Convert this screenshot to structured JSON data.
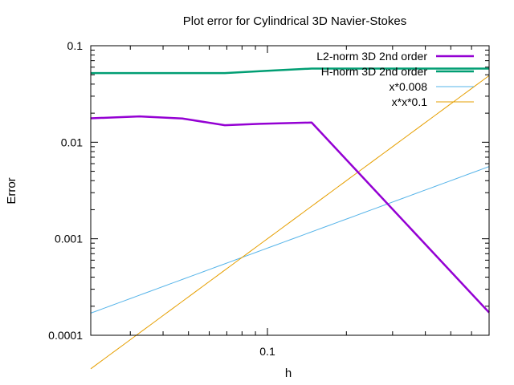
{
  "chart_data": {
    "type": "line",
    "title": "Plot error for Cylindrical 3D Navier-Stokes",
    "xlabel": "h",
    "ylabel": "Error",
    "xscale": "log",
    "yscale": "log",
    "xlim": [
      0.0212,
      0.7
    ],
    "ylim": [
      0.0001,
      0.1
    ],
    "xticks": [
      {
        "value": 0.1,
        "label": "0.1"
      }
    ],
    "yticks": [
      {
        "value": 0.0001,
        "label": "0.0001"
      },
      {
        "value": 0.001,
        "label": "0.001"
      },
      {
        "value": 0.01,
        "label": "0.01"
      },
      {
        "value": 0.1,
        "label": "0.1"
      }
    ],
    "legend_position": "top-right",
    "series": [
      {
        "name": "L2-norm 3D 2nd order",
        "color": "#9400d3",
        "style": "thick",
        "x": [
          0.0212,
          0.0325,
          0.0474,
          0.0688,
          0.0936,
          0.1474,
          0.7
        ],
        "y": [
          0.0177,
          0.0185,
          0.0176,
          0.015,
          0.0155,
          0.016,
          0.000172
        ]
      },
      {
        "name": "H-norm 3D 2nd order",
        "color": "#009e73",
        "style": "thick",
        "x": [
          0.0212,
          0.0688,
          0.1,
          0.1474,
          0.7
        ],
        "y": [
          0.052,
          0.052,
          0.055,
          0.058,
          0.058
        ]
      },
      {
        "name": "x*0.008",
        "color": "#56b4e9",
        "style": "thin",
        "function": "x*0.008"
      },
      {
        "name": "x*x*0.1",
        "color": "#e69f00",
        "style": "thin",
        "function": "x*x*0.1"
      }
    ]
  }
}
